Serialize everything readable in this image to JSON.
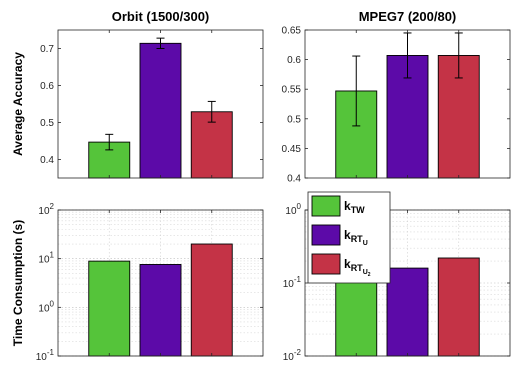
{
  "chart_data": [
    {
      "type": "bar",
      "title": "Orbit (1500/300)",
      "ylabel": "Average Accuracy",
      "xlabel": "",
      "yscale": "linear",
      "ylim": [
        0.35,
        0.75
      ],
      "yticks": [
        0.4,
        0.5,
        0.6,
        0.7
      ],
      "ytick_labels": [
        "0.4",
        "0.5",
        "0.6",
        "0.7"
      ],
      "grid": false,
      "values": [
        0.447,
        0.714,
        0.529
      ],
      "errors": [
        0.021,
        0.014,
        0.028
      ],
      "colors": [
        "#55c43a",
        "#5c0aa8",
        "#c43346"
      ]
    },
    {
      "type": "bar",
      "title": "MPEG7 (200/80)",
      "ylabel": "",
      "xlabel": "",
      "yscale": "linear",
      "ylim": [
        0.4,
        0.65
      ],
      "yticks": [
        0.4,
        0.45,
        0.5,
        0.55,
        0.6,
        0.65
      ],
      "ytick_labels": [
        "0.4",
        "0.45",
        "0.5",
        "0.55",
        "0.6",
        "0.65"
      ],
      "grid": false,
      "values": [
        0.547,
        0.607,
        0.607
      ],
      "errors": [
        0.059,
        0.038,
        0.038
      ],
      "colors": [
        "#55c43a",
        "#5c0aa8",
        "#c43346"
      ]
    },
    {
      "type": "bar",
      "title": "",
      "ylabel": "Time Consumption (s)",
      "xlabel": "",
      "yscale": "log",
      "ylim": [
        0.1,
        100
      ],
      "yticks": [
        0.1,
        1,
        10,
        100
      ],
      "ytick_labels": [
        [
          "10",
          "-1"
        ],
        [
          "10",
          "0"
        ],
        [
          "10",
          "1"
        ],
        [
          "10",
          "2"
        ]
      ],
      "grid": true,
      "values": [
        8.9,
        7.6,
        20
      ],
      "colors": [
        "#55c43a",
        "#5c0aa8",
        "#c43346"
      ]
    },
    {
      "type": "bar",
      "title": "",
      "ylabel": "",
      "xlabel": "",
      "yscale": "log",
      "ylim": [
        0.01,
        1.0
      ],
      "yticks": [
        0.01,
        0.1,
        1
      ],
      "ytick_labels": [
        [
          "10",
          "-2"
        ],
        [
          "10",
          "-1"
        ],
        [
          "10",
          "0"
        ]
      ],
      "grid": true,
      "values": [
        0.14,
        0.16,
        0.22
      ],
      "colors": [
        "#55c43a",
        "#5c0aa8",
        "#c43346"
      ],
      "legend": {
        "position": "top-left",
        "entries": [
          {
            "base": "k",
            "sub": "TW",
            "color": "#55c43a"
          },
          {
            "base": "k",
            "sub": "RT",
            "subsub": "U",
            "color": "#5c0aa8"
          },
          {
            "base": "k",
            "sub": "RT",
            "subsub": "U",
            "subsubsub": "2",
            "color": "#c43346"
          }
        ]
      }
    }
  ]
}
